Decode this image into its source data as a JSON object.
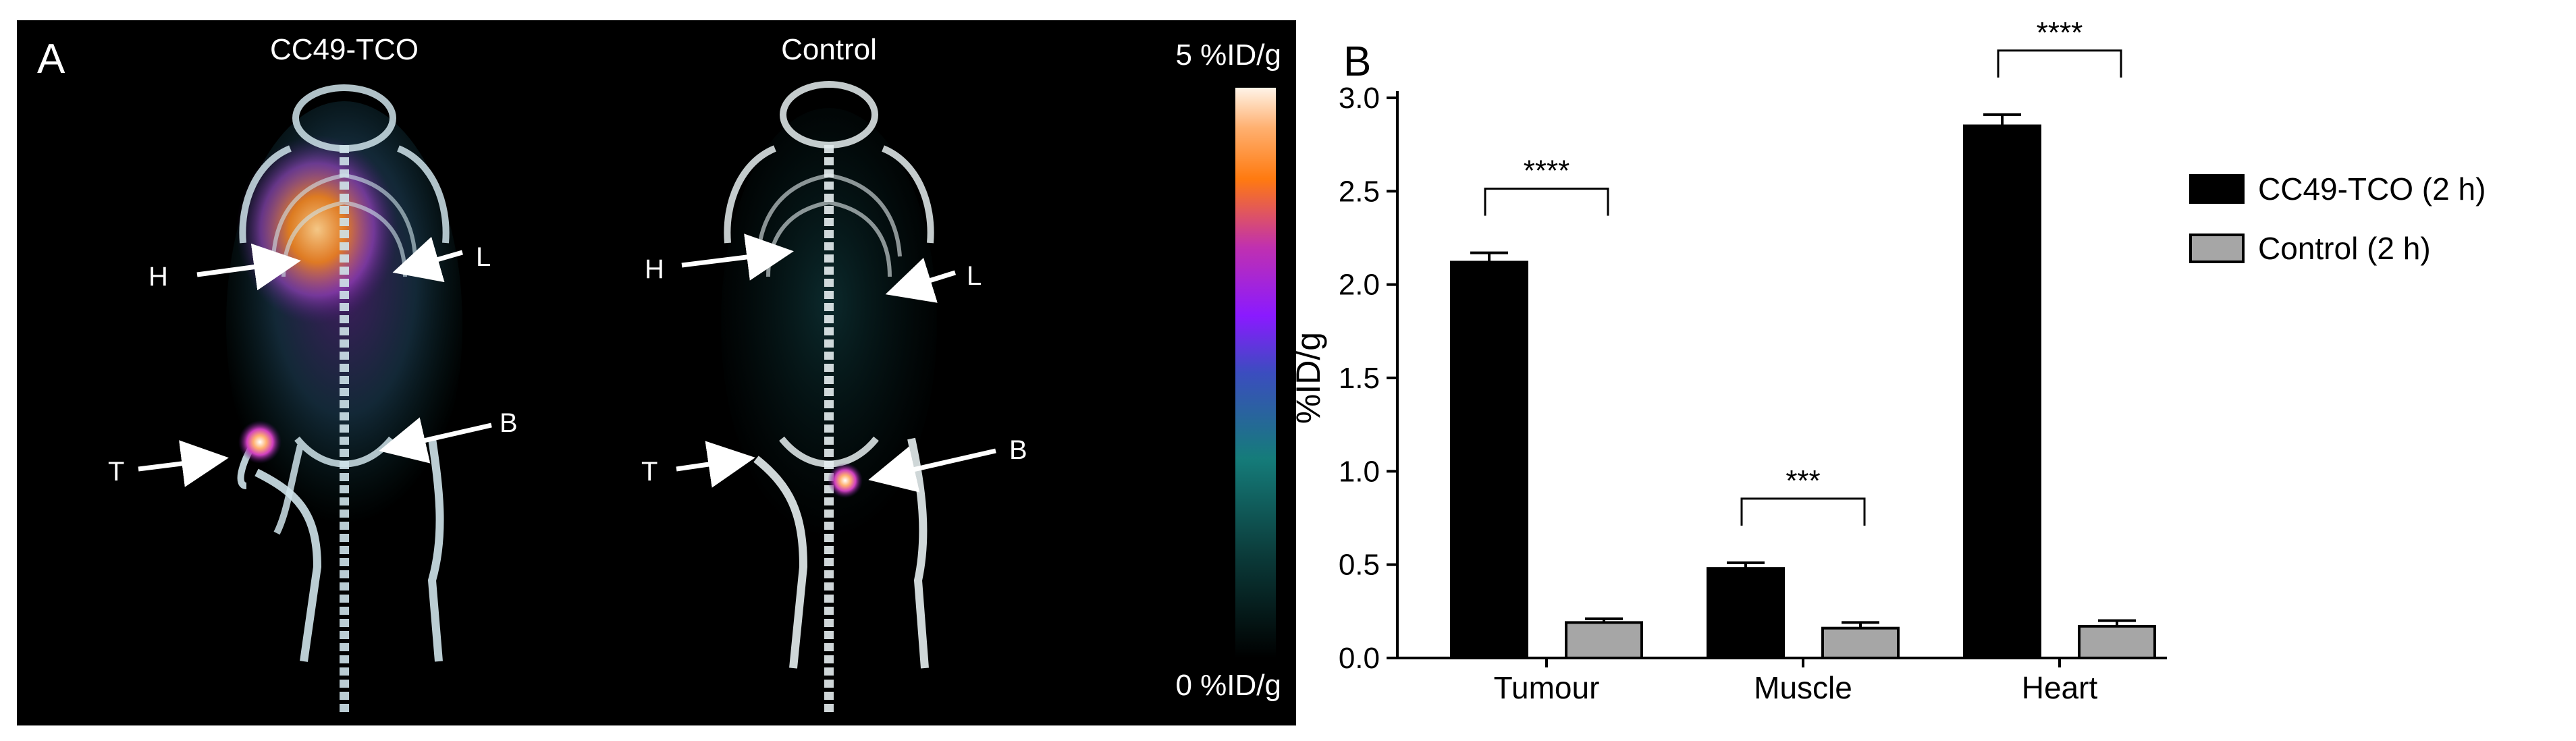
{
  "panel_a": {
    "label": "A",
    "left_title": "CC49-TCO",
    "right_title": "Control",
    "colorbar_max": "5 %ID/g",
    "colorbar_min": "0 %ID/g",
    "annotations": {
      "heart": "H",
      "liver": "L",
      "tumour": "T",
      "bladder": "B"
    },
    "colors": {
      "background": "#000000",
      "bone": "#cfe3ea",
      "high_uptake": "#ff8a1c",
      "mid_uptake": "#a040e0",
      "low_uptake": "#0c6e6a"
    }
  },
  "panel_b": {
    "label": "B",
    "chart_data": {
      "type": "bar",
      "categories": [
        "Tumour",
        "Muscle",
        "Heart"
      ],
      "series": [
        {
          "name": "CC49-TCO (2 h)",
          "values": [
            2.12,
            0.48,
            2.85
          ],
          "errors": [
            0.05,
            0.03,
            0.06
          ],
          "color": "#000000"
        },
        {
          "name": "Control (2 h)",
          "values": [
            0.19,
            0.16,
            0.17
          ],
          "errors": [
            0.02,
            0.03,
            0.03
          ],
          "color": "#a6a6a6"
        }
      ],
      "ylabel": "%ID/g",
      "xlabel": "",
      "ylim": [
        0,
        3.0
      ],
      "yticks": [
        "0.0",
        "0.5",
        "1.0",
        "1.5",
        "2.0",
        "2.5",
        "3.0"
      ],
      "legend_position": "right",
      "significance": [
        "****",
        "***",
        "****"
      ]
    }
  }
}
